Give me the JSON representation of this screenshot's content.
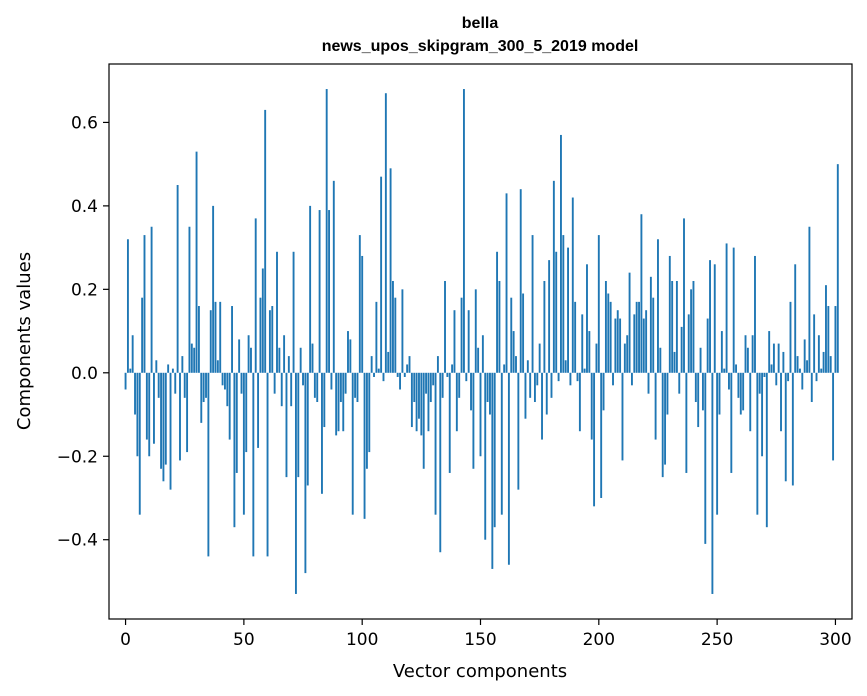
{
  "chart_data": {
    "type": "bar",
    "title": "bella",
    "subtitle": "news_upos_skipgram_300_5_2019 model",
    "xlabel": "Vector components",
    "ylabel": "Components values",
    "xlim": [
      -7,
      307
    ],
    "ylim": [
      -0.59,
      0.74
    ],
    "xticks": [
      0,
      50,
      100,
      150,
      200,
      250,
      300
    ],
    "xtick_labels": [
      "0",
      "50",
      "100",
      "150",
      "200",
      "250",
      "300"
    ],
    "yticks": [
      -0.4,
      -0.2,
      0.0,
      0.2,
      0.4,
      0.6
    ],
    "ytick_labels": [
      "−0.4",
      "−0.2",
      "0.0",
      "0.2",
      "0.4",
      "0.6"
    ],
    "bar_color": "#1f77b4",
    "grid": false,
    "values": [
      -0.04,
      0.32,
      0.01,
      0.09,
      -0.1,
      -0.2,
      -0.34,
      0.18,
      0.33,
      -0.16,
      -0.2,
      0.35,
      -0.17,
      0.03,
      -0.06,
      -0.23,
      -0.26,
      -0.22,
      0.02,
      -0.28,
      0.01,
      -0.05,
      0.45,
      -0.21,
      0.04,
      -0.06,
      -0.19,
      0.35,
      0.07,
      0.06,
      0.53,
      0.16,
      -0.12,
      -0.07,
      -0.06,
      -0.44,
      0.15,
      0.4,
      0.17,
      0.03,
      0.17,
      -0.03,
      -0.04,
      -0.08,
      -0.16,
      0.16,
      -0.37,
      -0.24,
      0.08,
      -0.05,
      -0.34,
      -0.19,
      0.09,
      0.06,
      -0.44,
      0.37,
      -0.18,
      0.18,
      0.25,
      0.63,
      -0.44,
      0.15,
      0.16,
      -0.05,
      0.29,
      0.06,
      -0.08,
      0.09,
      -0.25,
      0.04,
      -0.08,
      0.29,
      -0.53,
      -0.25,
      0.06,
      -0.03,
      -0.48,
      -0.27,
      0.4,
      0.07,
      -0.06,
      -0.07,
      0.39,
      -0.29,
      -0.13,
      0.68,
      0.39,
      -0.04,
      0.46,
      -0.15,
      -0.14,
      -0.07,
      -0.14,
      -0.05,
      0.1,
      0.08,
      -0.34,
      -0.06,
      -0.07,
      0.33,
      0.28,
      -0.35,
      -0.23,
      -0.19,
      0.04,
      -0.01,
      0.17,
      0.01,
      0.47,
      -0.02,
      0.67,
      0.05,
      0.49,
      0.22,
      0.18,
      -0.01,
      -0.04,
      0.2,
      -0.01,
      0.02,
      0.04,
      -0.13,
      -0.07,
      -0.14,
      -0.11,
      -0.15,
      -0.23,
      -0.05,
      -0.14,
      -0.07,
      -0.03,
      -0.34,
      0.04,
      -0.43,
      -0.06,
      0.22,
      -0.01,
      -0.24,
      0.02,
      0.15,
      -0.14,
      -0.06,
      0.18,
      0.68,
      -0.02,
      0.15,
      -0.09,
      -0.23,
      0.2,
      0.06,
      -0.2,
      0.09,
      -0.4,
      -0.07,
      -0.1,
      -0.47,
      -0.37,
      0.29,
      0.22,
      -0.34,
      0.02,
      0.43,
      -0.46,
      0.18,
      0.1,
      0.04,
      -0.28,
      0.44,
      0.19,
      -0.11,
      0.03,
      -0.06,
      0.33,
      -0.07,
      -0.03,
      0.07,
      -0.16,
      0.22,
      -0.1,
      0.27,
      -0.06,
      0.46,
      0.29,
      -0.02,
      0.57,
      0.33,
      0.03,
      0.3,
      -0.03,
      0.42,
      0.17,
      -0.02,
      -0.14,
      0.14,
      0.01,
      0.26,
      0.1,
      -0.16,
      -0.32,
      0.07,
      0.33,
      -0.3,
      -0.09,
      0.22,
      0.19,
      0.17,
      -0.03,
      0.13,
      0.15,
      0.13,
      -0.21,
      0.07,
      0.09,
      0.24,
      -0.03,
      0.14,
      0.17,
      0.17,
      0.38,
      0.13,
      0.15,
      -0.05,
      0.23,
      0.18,
      -0.16,
      0.32,
      0.06,
      -0.25,
      -0.22,
      -0.1,
      0.28,
      0.22,
      0.05,
      0.22,
      -0.05,
      0.11,
      0.37,
      -0.24,
      0.14,
      0.2,
      0.22,
      -0.07,
      -0.13,
      0.06,
      -0.09,
      -0.41,
      0.13,
      0.27,
      -0.53,
      0.26,
      -0.34,
      -0.1,
      0.1,
      0.01,
      0.31,
      -0.04,
      -0.24,
      0.3,
      0.02,
      -0.06,
      -0.1,
      -0.09,
      0.09,
      0.06,
      -0.14,
      0.09,
      0.28,
      -0.34,
      -0.05,
      -0.2,
      -0.01,
      -0.37,
      0.1,
      0.02,
      0.07,
      -0.03,
      0.07,
      -0.14,
      0.05,
      -0.26,
      -0.02,
      0.17,
      -0.27,
      0.26,
      0.04,
      0.01,
      -0.04,
      0.08,
      0.03,
      0.35,
      -0.07,
      0.14,
      -0.02,
      0.09,
      0.01,
      0.05,
      0.21,
      0.16,
      0.04,
      -0.21,
      0.16,
      0.5
    ]
  }
}
